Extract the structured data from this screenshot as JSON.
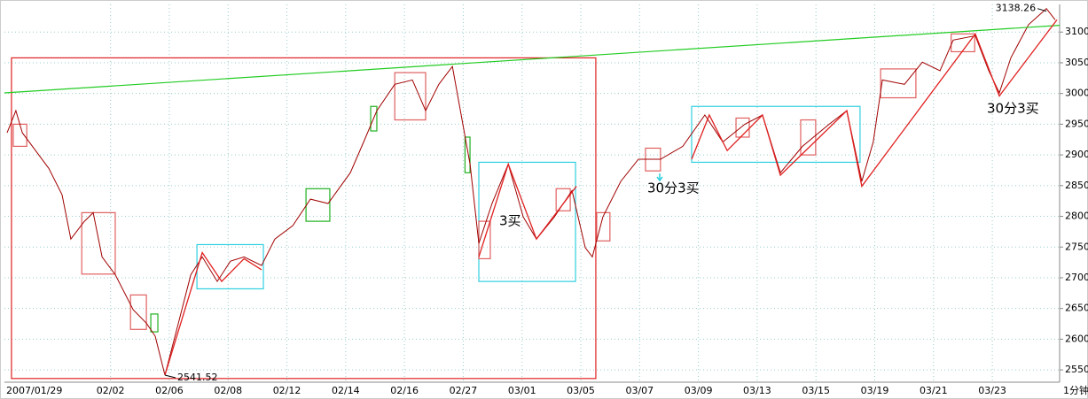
{
  "chart_data": {
    "type": "line",
    "period_label": "1分钟",
    "xlim": [
      0.39,
      36.29
    ],
    "ylim": [
      2530,
      3145
    ],
    "xticks": [
      {
        "value": 0,
        "label": "2007/01/29"
      },
      {
        "value": 4,
        "label": "02/02"
      },
      {
        "value": 6,
        "label": "02/06"
      },
      {
        "value": 8,
        "label": "02/08"
      },
      {
        "value": 10,
        "label": "02/12"
      },
      {
        "value": 12,
        "label": "02/14"
      },
      {
        "value": 14,
        "label": "02/16"
      },
      {
        "value": 16,
        "label": "02/27"
      },
      {
        "value": 18,
        "label": "03/01"
      },
      {
        "value": 20,
        "label": "03/05"
      },
      {
        "value": 22,
        "label": "03/07"
      },
      {
        "value": 24,
        "label": "03/09"
      },
      {
        "value": 26,
        "label": "03/13"
      },
      {
        "value": 28,
        "label": "03/15"
      },
      {
        "value": 30,
        "label": "03/19"
      },
      {
        "value": 32,
        "label": "03/21"
      },
      {
        "value": 34,
        "label": "03/23"
      }
    ],
    "yticks": [
      2550,
      2600,
      2650,
      2700,
      2750,
      2800,
      2850,
      2900,
      2950,
      3000,
      3050,
      3100
    ],
    "grid": true,
    "series": [
      {
        "color": "#a00000",
        "x": [
          0.48,
          0.78,
          1.0,
          1.45,
          1.9,
          2.35,
          2.65,
          3.11,
          3.41,
          3.71,
          4.16,
          4.77,
          5.22,
          5.52,
          5.85,
          6.27,
          6.73,
          7.12,
          7.63,
          8.08,
          8.54,
          9.14,
          9.59,
          10.2,
          10.8,
          11.4,
          12.16,
          12.61,
          13.06,
          13.67,
          14.27,
          14.72,
          15.17,
          15.63,
          15.93,
          16.23,
          16.53,
          16.98,
          17.53,
          18.04,
          18.49,
          19.1,
          19.7,
          20.15,
          20.39,
          20.75,
          21.36,
          21.96,
          22.71,
          23.47,
          24.22,
          24.83,
          25.58,
          26.18,
          26.79,
          27.54,
          28.45,
          29.05,
          29.56,
          29.95,
          30.26,
          31.01,
          31.62,
          32.22,
          32.67,
          33.42,
          33.88,
          34.24,
          34.63,
          35.23,
          35.84,
          36.14
        ],
        "values": [
          2936,
          2972,
          2936,
          2907,
          2878,
          2835,
          2763,
          2792,
          2806,
          2734,
          2705,
          2648,
          2626,
          2605,
          2541.52,
          2619,
          2705,
          2734,
          2694,
          2727,
          2734,
          2720,
          2763,
          2785,
          2828,
          2821,
          2871,
          2921,
          2972,
          3015,
          3022,
          2972,
          3015,
          3044,
          2965,
          2885,
          2756,
          2821,
          2885,
          2799,
          2763,
          2799,
          2842,
          2749,
          2734,
          2799,
          2857,
          2893,
          2893,
          2914,
          2965,
          2921,
          2950,
          2965,
          2871,
          2914,
          2950,
          2972,
          2857,
          2921,
          3022,
          3015,
          3051,
          3037,
          3087,
          3094,
          3037,
          3001,
          3058,
          3112,
          3138.26,
          3120
        ]
      }
    ],
    "low": 2541.52,
    "high": 3138.26,
    "trendline": {
      "color": "#22cc22",
      "x": [
        0.39,
        36.29
      ],
      "values": [
        3001,
        3111
      ]
    },
    "strokes": {
      "color": "#e02020",
      "x": [
        5.85,
        7.12,
        7.78,
        8.54,
        9.14,
        null,
        16.53,
        17.53,
        18.49,
        19.85,
        null,
        23.77,
        24.37,
        24.98,
        26.18,
        26.79,
        29.05,
        29.56,
        33.42,
        34.24,
        36.2
      ],
      "values": [
        2541.52,
        2741,
        2694,
        2731,
        2713,
        null,
        2734,
        2885,
        2763,
        2849,
        null,
        2893,
        2965,
        2907,
        2965,
        2867,
        2972,
        2849,
        3097,
        2996,
        3120
      ]
    },
    "zones": [
      {
        "color": "#e02020",
        "x0": 0.63,
        "x1": 20.51,
        "y0": 2536,
        "y1": 3058
      },
      {
        "color": "#30d0e0",
        "x0": 6.94,
        "x1": 9.2,
        "y0": 2682,
        "y1": 2754
      },
      {
        "color": "#30d0e0",
        "x0": 16.53,
        "x1": 19.82,
        "y0": 2694,
        "y1": 2888
      },
      {
        "color": "#30d0e0",
        "x0": 23.77,
        "x1": 29.5,
        "y0": 2888,
        "y1": 2979
      },
      {
        "color": "#e06060",
        "x0": 0.69,
        "x1": 1.15,
        "y0": 2914,
        "y1": 2950
      },
      {
        "color": "#e06060",
        "x0": 3.02,
        "x1": 4.16,
        "y0": 2706,
        "y1": 2806
      },
      {
        "color": "#e06060",
        "x0": 4.68,
        "x1": 5.22,
        "y0": 2616,
        "y1": 2672
      },
      {
        "color": "#e06060",
        "x0": 13.67,
        "x1": 14.72,
        "y0": 2957,
        "y1": 3034
      },
      {
        "color": "#e06060",
        "x0": 16.53,
        "x1": 16.92,
        "y0": 2731,
        "y1": 2792
      },
      {
        "color": "#e06060",
        "x0": 19.16,
        "x1": 19.64,
        "y0": 2809,
        "y1": 2845
      },
      {
        "color": "#e06060",
        "x0": 20.54,
        "x1": 20.99,
        "y0": 2760,
        "y1": 2806
      },
      {
        "color": "#e06060",
        "x0": 22.2,
        "x1": 22.71,
        "y0": 2874,
        "y1": 2911
      },
      {
        "color": "#e06060",
        "x0": 25.28,
        "x1": 25.73,
        "y0": 2929,
        "y1": 2960
      },
      {
        "color": "#e06060",
        "x0": 27.48,
        "x1": 27.99,
        "y0": 2900,
        "y1": 2957
      },
      {
        "color": "#e06060",
        "x0": 30.2,
        "x1": 31.4,
        "y0": 2993,
        "y1": 3040
      },
      {
        "color": "#e06060",
        "x0": 32.6,
        "x1": 33.4,
        "y0": 3068,
        "y1": 3097
      },
      {
        "color": "#20b020",
        "x0": 5.37,
        "x1": 5.61,
        "y0": 2612,
        "y1": 2641
      },
      {
        "color": "#20b020",
        "x0": 10.65,
        "x1": 11.46,
        "y0": 2792,
        "y1": 2845
      },
      {
        "color": "#20b020",
        "x0": 12.85,
        "x1": 13.06,
        "y0": 2939,
        "y1": 2979
      },
      {
        "color": "#20b020",
        "x0": 16.06,
        "x1": 16.23,
        "y0": 2871,
        "y1": 2929
      }
    ],
    "annotations": [
      {
        "text": "3买"
      },
      {
        "text": "30分3买"
      },
      {
        "text": "30分3买"
      }
    ]
  }
}
